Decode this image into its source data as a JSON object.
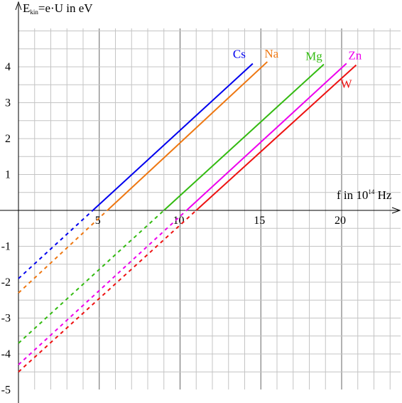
{
  "chart_data": {
    "type": "line",
    "title": "",
    "ylabel_main": "E",
    "ylabel_sub": "kin",
    "ylabel_rest": "=e·U in eV",
    "xlabel_main": "f in 10",
    "xlabel_sup": "14",
    "xlabel_rest": " Hz",
    "xlim": [
      -0.5,
      23
    ],
    "ylim": [
      -5.2,
      5
    ],
    "x_ticks": [
      5,
      10,
      15,
      20
    ],
    "y_ticks": [
      -5,
      -4,
      -3,
      -2,
      -1,
      1,
      2,
      3,
      4
    ],
    "grid": true,
    "grid_step_x": 1,
    "grid_step_y": 0.5,
    "series": [
      {
        "name": "Cs",
        "color": "#0000ee",
        "threshold": 4.6,
        "x_end": 14.5,
        "y_intercept": -1.9
      },
      {
        "name": "Na",
        "color": "#ee7711",
        "threshold": 5.5,
        "x_end": 15.4,
        "y_intercept": -2.3
      },
      {
        "name": "Mg",
        "color": "#33bb11",
        "threshold": 9.0,
        "x_end": 18.9,
        "y_intercept": -3.7
      },
      {
        "name": "Zn",
        "color": "#ee00ee",
        "threshold": 10.4,
        "x_end": 20.3,
        "y_intercept": -4.3
      },
      {
        "name": "W",
        "color": "#ee1111",
        "threshold": 11.0,
        "x_end": 20.9,
        "y_intercept": -4.5
      }
    ]
  }
}
